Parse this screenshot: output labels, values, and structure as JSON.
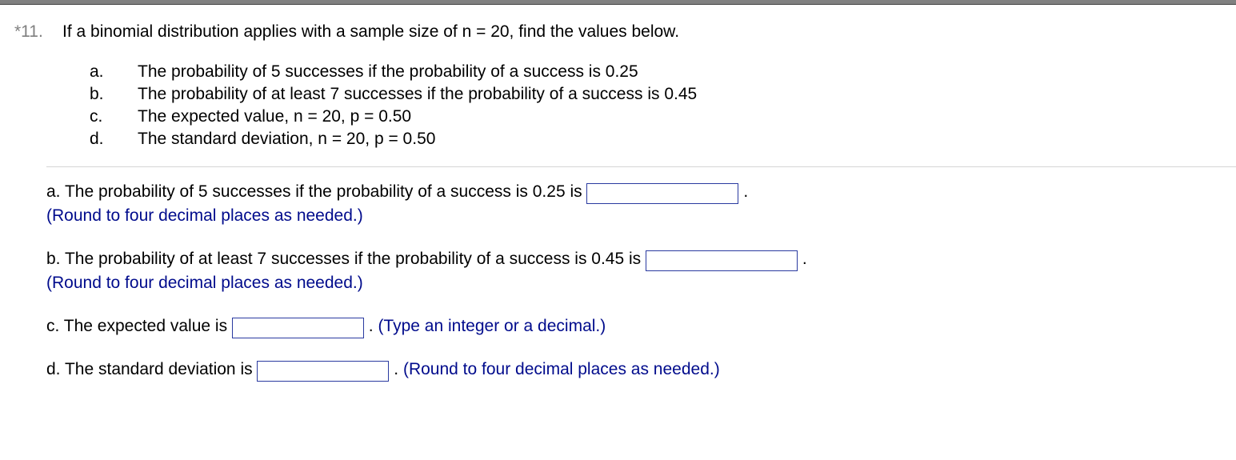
{
  "question": {
    "number_label": "*11.",
    "prompt": "If a binomial distribution applies with a sample size of n = 20, find the values below."
  },
  "options": [
    {
      "letter": "a.",
      "text": "The probability of 5 successes if the probability of a success is 0.25"
    },
    {
      "letter": "b.",
      "text": "The probability of at least 7 successes if the probability of a success is 0.45"
    },
    {
      "letter": "c.",
      "text": "The expected value, n = 20, p = 0.50"
    },
    {
      "letter": "d.",
      "text": "The standard deviation, n = 20, p = 0.50"
    }
  ],
  "answers": {
    "a": {
      "pre": "a. The probability of 5 successes if the probability of a success is 0.25 is ",
      "post": ".",
      "hint": "(Round to four decimal places as needed.)",
      "value": ""
    },
    "b": {
      "pre": "b. The probability of at least 7 successes if the probability of a success is 0.45 is ",
      "post": ".",
      "hint": "(Round to four decimal places as needed.)",
      "value": ""
    },
    "c": {
      "pre": "c. The expected value is ",
      "post": ". ",
      "hint_inline": "(Type an integer or a decimal.)",
      "value": ""
    },
    "d": {
      "pre": "d. The standard deviation is ",
      "post": ". ",
      "hint_inline": "(Round to four decimal places as needed.)",
      "value": ""
    }
  },
  "colors": {
    "hint_color": "#000b8c",
    "input_border": "#2a3aa0",
    "qnum_color": "#808080"
  }
}
